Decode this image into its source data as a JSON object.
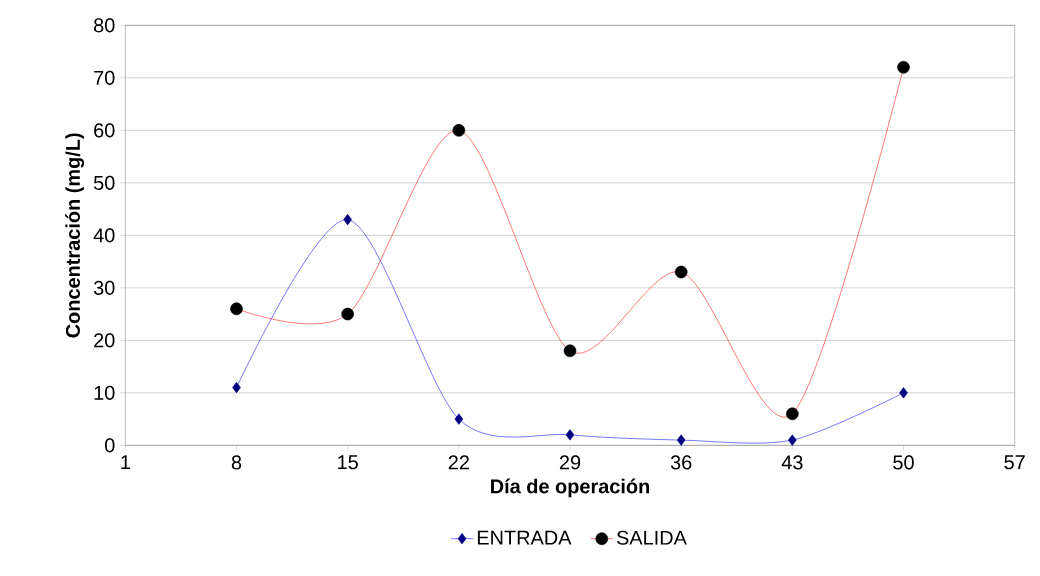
{
  "chart_data": {
    "type": "line",
    "xlabel": "Día de operación",
    "ylabel": "Concentración (mg/L)",
    "x": [
      8,
      15,
      22,
      29,
      36,
      43,
      50
    ],
    "series": [
      {
        "name": "ENTRADA",
        "color": "#0000ff",
        "marker": "diamond",
        "values": [
          11,
          43,
          5,
          2,
          1,
          1,
          10
        ]
      },
      {
        "name": "SALIDA",
        "color": "#ff0000",
        "marker": "circle",
        "values": [
          26,
          25,
          60,
          18,
          33,
          6,
          72
        ]
      }
    ],
    "xlim": [
      1,
      57
    ],
    "xticks": [
      1,
      8,
      15,
      22,
      29,
      36,
      43,
      50,
      57
    ],
    "ylim": [
      0,
      80
    ],
    "yticks": [
      0,
      10,
      20,
      30,
      40,
      50,
      60,
      70,
      80
    ],
    "grid": "y",
    "legend": "bottom",
    "line_style": "solid"
  }
}
